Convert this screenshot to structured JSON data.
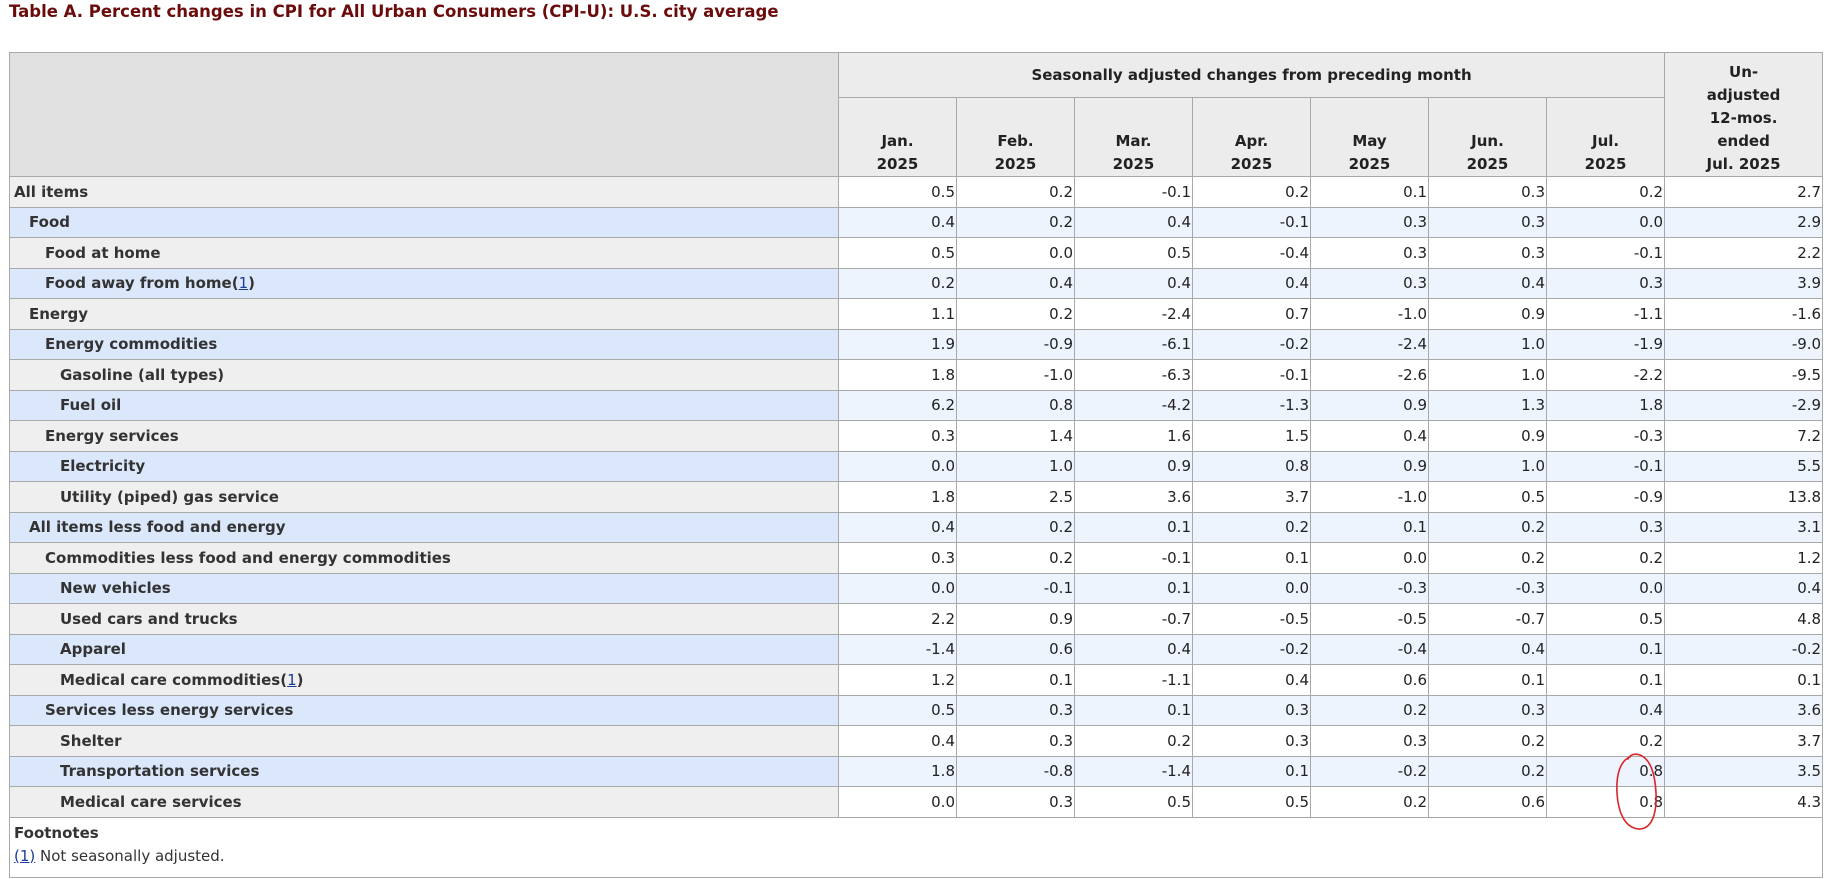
{
  "title": "Table A. Percent changes in CPI for All Urban Consumers (CPI-U): U.S. city average",
  "header": {
    "group_label": "Seasonally adjusted changes from preceding month",
    "months": [
      {
        "month": "Jan.",
        "year": "2025"
      },
      {
        "month": "Feb.",
        "year": "2025"
      },
      {
        "month": "Mar.",
        "year": "2025"
      },
      {
        "month": "Apr.",
        "year": "2025"
      },
      {
        "month": "May",
        "year": "2025"
      },
      {
        "month": "Jun.",
        "year": "2025"
      },
      {
        "month": "Jul.",
        "year": "2025"
      }
    ],
    "unadjusted_lines": [
      "Un-",
      "adjusted",
      "12-mos.",
      "ended",
      "Jul. 2025"
    ]
  },
  "rows": [
    {
      "label": "All items",
      "indent": 0,
      "footnote": "",
      "values": [
        "0.5",
        "0.2",
        "-0.1",
        "0.2",
        "0.1",
        "0.3",
        "0.2",
        "2.7"
      ]
    },
    {
      "label": "Food",
      "indent": 1,
      "footnote": "",
      "values": [
        "0.4",
        "0.2",
        "0.4",
        "-0.1",
        "0.3",
        "0.3",
        "0.0",
        "2.9"
      ]
    },
    {
      "label": "Food at home",
      "indent": 2,
      "footnote": "",
      "values": [
        "0.5",
        "0.0",
        "0.5",
        "-0.4",
        "0.3",
        "0.3",
        "-0.1",
        "2.2"
      ]
    },
    {
      "label": "Food away from home",
      "indent": 2,
      "footnote": "1",
      "values": [
        "0.2",
        "0.4",
        "0.4",
        "0.4",
        "0.3",
        "0.4",
        "0.3",
        "3.9"
      ]
    },
    {
      "label": "Energy",
      "indent": 1,
      "footnote": "",
      "values": [
        "1.1",
        "0.2",
        "-2.4",
        "0.7",
        "-1.0",
        "0.9",
        "-1.1",
        "-1.6"
      ]
    },
    {
      "label": "Energy commodities",
      "indent": 2,
      "footnote": "",
      "values": [
        "1.9",
        "-0.9",
        "-6.1",
        "-0.2",
        "-2.4",
        "1.0",
        "-1.9",
        "-9.0"
      ]
    },
    {
      "label": "Gasoline (all types)",
      "indent": 3,
      "footnote": "",
      "values": [
        "1.8",
        "-1.0",
        "-6.3",
        "-0.1",
        "-2.6",
        "1.0",
        "-2.2",
        "-9.5"
      ]
    },
    {
      "label": "Fuel oil",
      "indent": 3,
      "footnote": "",
      "values": [
        "6.2",
        "0.8",
        "-4.2",
        "-1.3",
        "0.9",
        "1.3",
        "1.8",
        "-2.9"
      ]
    },
    {
      "label": "Energy services",
      "indent": 2,
      "footnote": "",
      "values": [
        "0.3",
        "1.4",
        "1.6",
        "1.5",
        "0.4",
        "0.9",
        "-0.3",
        "7.2"
      ]
    },
    {
      "label": "Electricity",
      "indent": 3,
      "footnote": "",
      "values": [
        "0.0",
        "1.0",
        "0.9",
        "0.8",
        "0.9",
        "1.0",
        "-0.1",
        "5.5"
      ]
    },
    {
      "label": "Utility (piped) gas service",
      "indent": 3,
      "footnote": "",
      "values": [
        "1.8",
        "2.5",
        "3.6",
        "3.7",
        "-1.0",
        "0.5",
        "-0.9",
        "13.8"
      ]
    },
    {
      "label": "All items less food and energy",
      "indent": 1,
      "footnote": "",
      "values": [
        "0.4",
        "0.2",
        "0.1",
        "0.2",
        "0.1",
        "0.2",
        "0.3",
        "3.1"
      ]
    },
    {
      "label": "Commodities less food and energy commodities",
      "indent": 2,
      "footnote": "",
      "values": [
        "0.3",
        "0.2",
        "-0.1",
        "0.1",
        "0.0",
        "0.2",
        "0.2",
        "1.2"
      ]
    },
    {
      "label": "New vehicles",
      "indent": 3,
      "footnote": "",
      "values": [
        "0.0",
        "-0.1",
        "0.1",
        "0.0",
        "-0.3",
        "-0.3",
        "0.0",
        "0.4"
      ]
    },
    {
      "label": "Used cars and trucks",
      "indent": 3,
      "footnote": "",
      "values": [
        "2.2",
        "0.9",
        "-0.7",
        "-0.5",
        "-0.5",
        "-0.7",
        "0.5",
        "4.8"
      ]
    },
    {
      "label": "Apparel",
      "indent": 3,
      "footnote": "",
      "values": [
        "-1.4",
        "0.6",
        "0.4",
        "-0.2",
        "-0.4",
        "0.4",
        "0.1",
        "-0.2"
      ]
    },
    {
      "label": "Medical care commodities",
      "indent": 3,
      "footnote": "1",
      "values": [
        "1.2",
        "0.1",
        "-1.1",
        "0.4",
        "0.6",
        "0.1",
        "0.1",
        "0.1"
      ]
    },
    {
      "label": "Services less energy services",
      "indent": 2,
      "footnote": "",
      "values": [
        "0.5",
        "0.3",
        "0.1",
        "0.3",
        "0.2",
        "0.3",
        "0.4",
        "3.6"
      ]
    },
    {
      "label": "Shelter",
      "indent": 3,
      "footnote": "",
      "values": [
        "0.4",
        "0.3",
        "0.2",
        "0.3",
        "0.3",
        "0.2",
        "0.2",
        "3.7"
      ]
    },
    {
      "label": "Transportation services",
      "indent": 3,
      "footnote": "",
      "values": [
        "1.8",
        "-0.8",
        "-1.4",
        "0.1",
        "-0.2",
        "0.2",
        "0.8",
        "3.5"
      ]
    },
    {
      "label": "Medical care services",
      "indent": 3,
      "footnote": "",
      "values": [
        "0.0",
        "0.3",
        "0.5",
        "0.5",
        "0.2",
        "0.6",
        "0.8",
        "4.3"
      ]
    }
  ],
  "footnotes": {
    "title": "Footnotes",
    "items": [
      {
        "ref": "(1)",
        "text": " Not seasonally adjusted."
      }
    ]
  },
  "colors": {
    "title": "#6b0b0b",
    "row_label_odd": "#efefef",
    "row_label_even": "#dbe7fb",
    "annotation": "#d9262a"
  }
}
